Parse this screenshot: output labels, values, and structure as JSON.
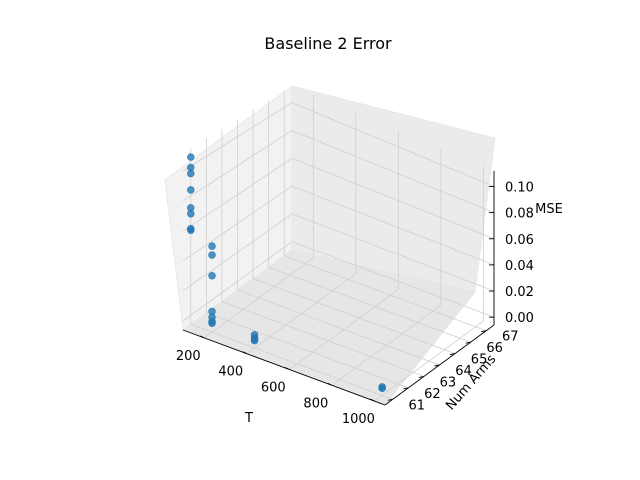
{
  "chart_data": {
    "type": "scatter",
    "title": "Baseline 2 Error",
    "xlabel": "T",
    "ylabel": "Num Arms",
    "zlabel": "MSE",
    "x_ticks": [
      200,
      400,
      600,
      800,
      1000
    ],
    "y_ticks": [
      61,
      62,
      63,
      64,
      65,
      66,
      67
    ],
    "z_ticks": [
      "0.00",
      "0.02",
      "0.04",
      "0.06",
      "0.08",
      "0.10"
    ],
    "xlim": [
      100,
      1050
    ],
    "ylim": [
      60.5,
      67.5
    ],
    "zlim": [
      -0.006,
      0.112
    ],
    "grid": true,
    "point_color": "#1f77b4",
    "points": [
      {
        "x": 100,
        "y": 61,
        "z": 0.106
      },
      {
        "x": 100,
        "y": 61,
        "z": 0.099
      },
      {
        "x": 100,
        "y": 61,
        "z": 0.095
      },
      {
        "x": 100,
        "y": 61,
        "z": 0.084
      },
      {
        "x": 100,
        "y": 61,
        "z": 0.072
      },
      {
        "x": 100,
        "y": 61,
        "z": 0.068
      },
      {
        "x": 100,
        "y": 61,
        "z": 0.058
      },
      {
        "x": 100,
        "y": 61,
        "z": 0.057
      },
      {
        "x": 200,
        "y": 61,
        "z": 0.052
      },
      {
        "x": 200,
        "y": 61,
        "z": 0.046
      },
      {
        "x": 200,
        "y": 61,
        "z": 0.032
      },
      {
        "x": 200,
        "y": 61,
        "z": 0.008
      },
      {
        "x": 200,
        "y": 61,
        "z": 0.004
      },
      {
        "x": 200,
        "y": 61,
        "z": 0.001
      },
      {
        "x": 200,
        "y": 61,
        "z": 0.0
      },
      {
        "x": 400,
        "y": 61,
        "z": 0.003
      },
      {
        "x": 400,
        "y": 61,
        "z": 0.001
      },
      {
        "x": 400,
        "y": 61,
        "z": 0.0
      },
      {
        "x": 400,
        "y": 61,
        "z": -0.001
      },
      {
        "x": 1000,
        "y": 61,
        "z": 0.0
      },
      {
        "x": 1000,
        "y": 61,
        "z": -0.001
      }
    ]
  }
}
